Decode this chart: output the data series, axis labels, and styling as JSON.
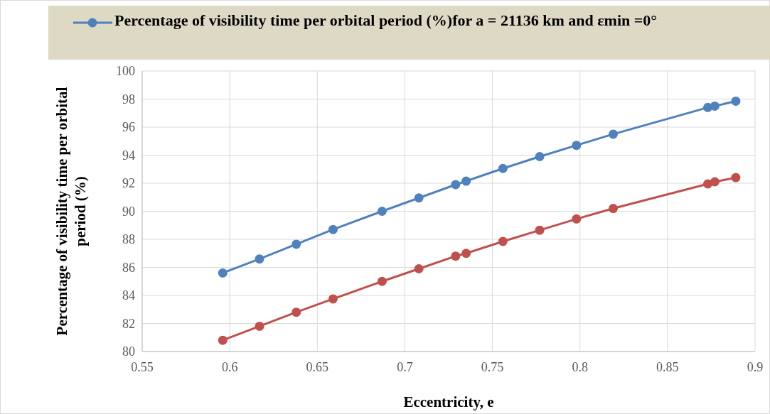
{
  "chart_data": {
    "type": "line",
    "xlabel": "Eccentricity, e",
    "ylabel": "Percentage of visibility time per orbital period (%)",
    "x": [
      0.596,
      0.617,
      0.638,
      0.659,
      0.687,
      0.708,
      0.729,
      0.735,
      0.756,
      0.777,
      0.798,
      0.819,
      0.873,
      0.877,
      0.889
    ],
    "series": [
      {
        "name": "Percentage of visibility time per orbital period (%)for a = 21136 km and εmin  =0°",
        "color": "#4f81bd",
        "values": [
          85.6,
          86.6,
          87.65,
          88.7,
          90.0,
          90.95,
          91.9,
          92.15,
          93.05,
          93.9,
          94.7,
          95.5,
          97.4,
          97.5,
          97.85
        ]
      },
      {
        "color": "#c0504d",
        "values": [
          80.8,
          81.8,
          82.8,
          83.75,
          85.0,
          85.9,
          86.8,
          87.0,
          87.85,
          88.65,
          89.45,
          90.2,
          91.95,
          92.1,
          92.4
        ]
      }
    ],
    "xlim": [
      0.55,
      0.9
    ],
    "xticks": [
      0.55,
      0.6,
      0.65,
      0.7,
      0.75,
      0.8,
      0.85,
      0.9
    ],
    "ylim": [
      80,
      100
    ],
    "yticks": [
      80,
      82,
      84,
      86,
      88,
      90,
      92,
      94,
      96,
      98,
      100
    ],
    "grid": true,
    "legend": "top",
    "marker": "circle",
    "line_style": "solid"
  }
}
